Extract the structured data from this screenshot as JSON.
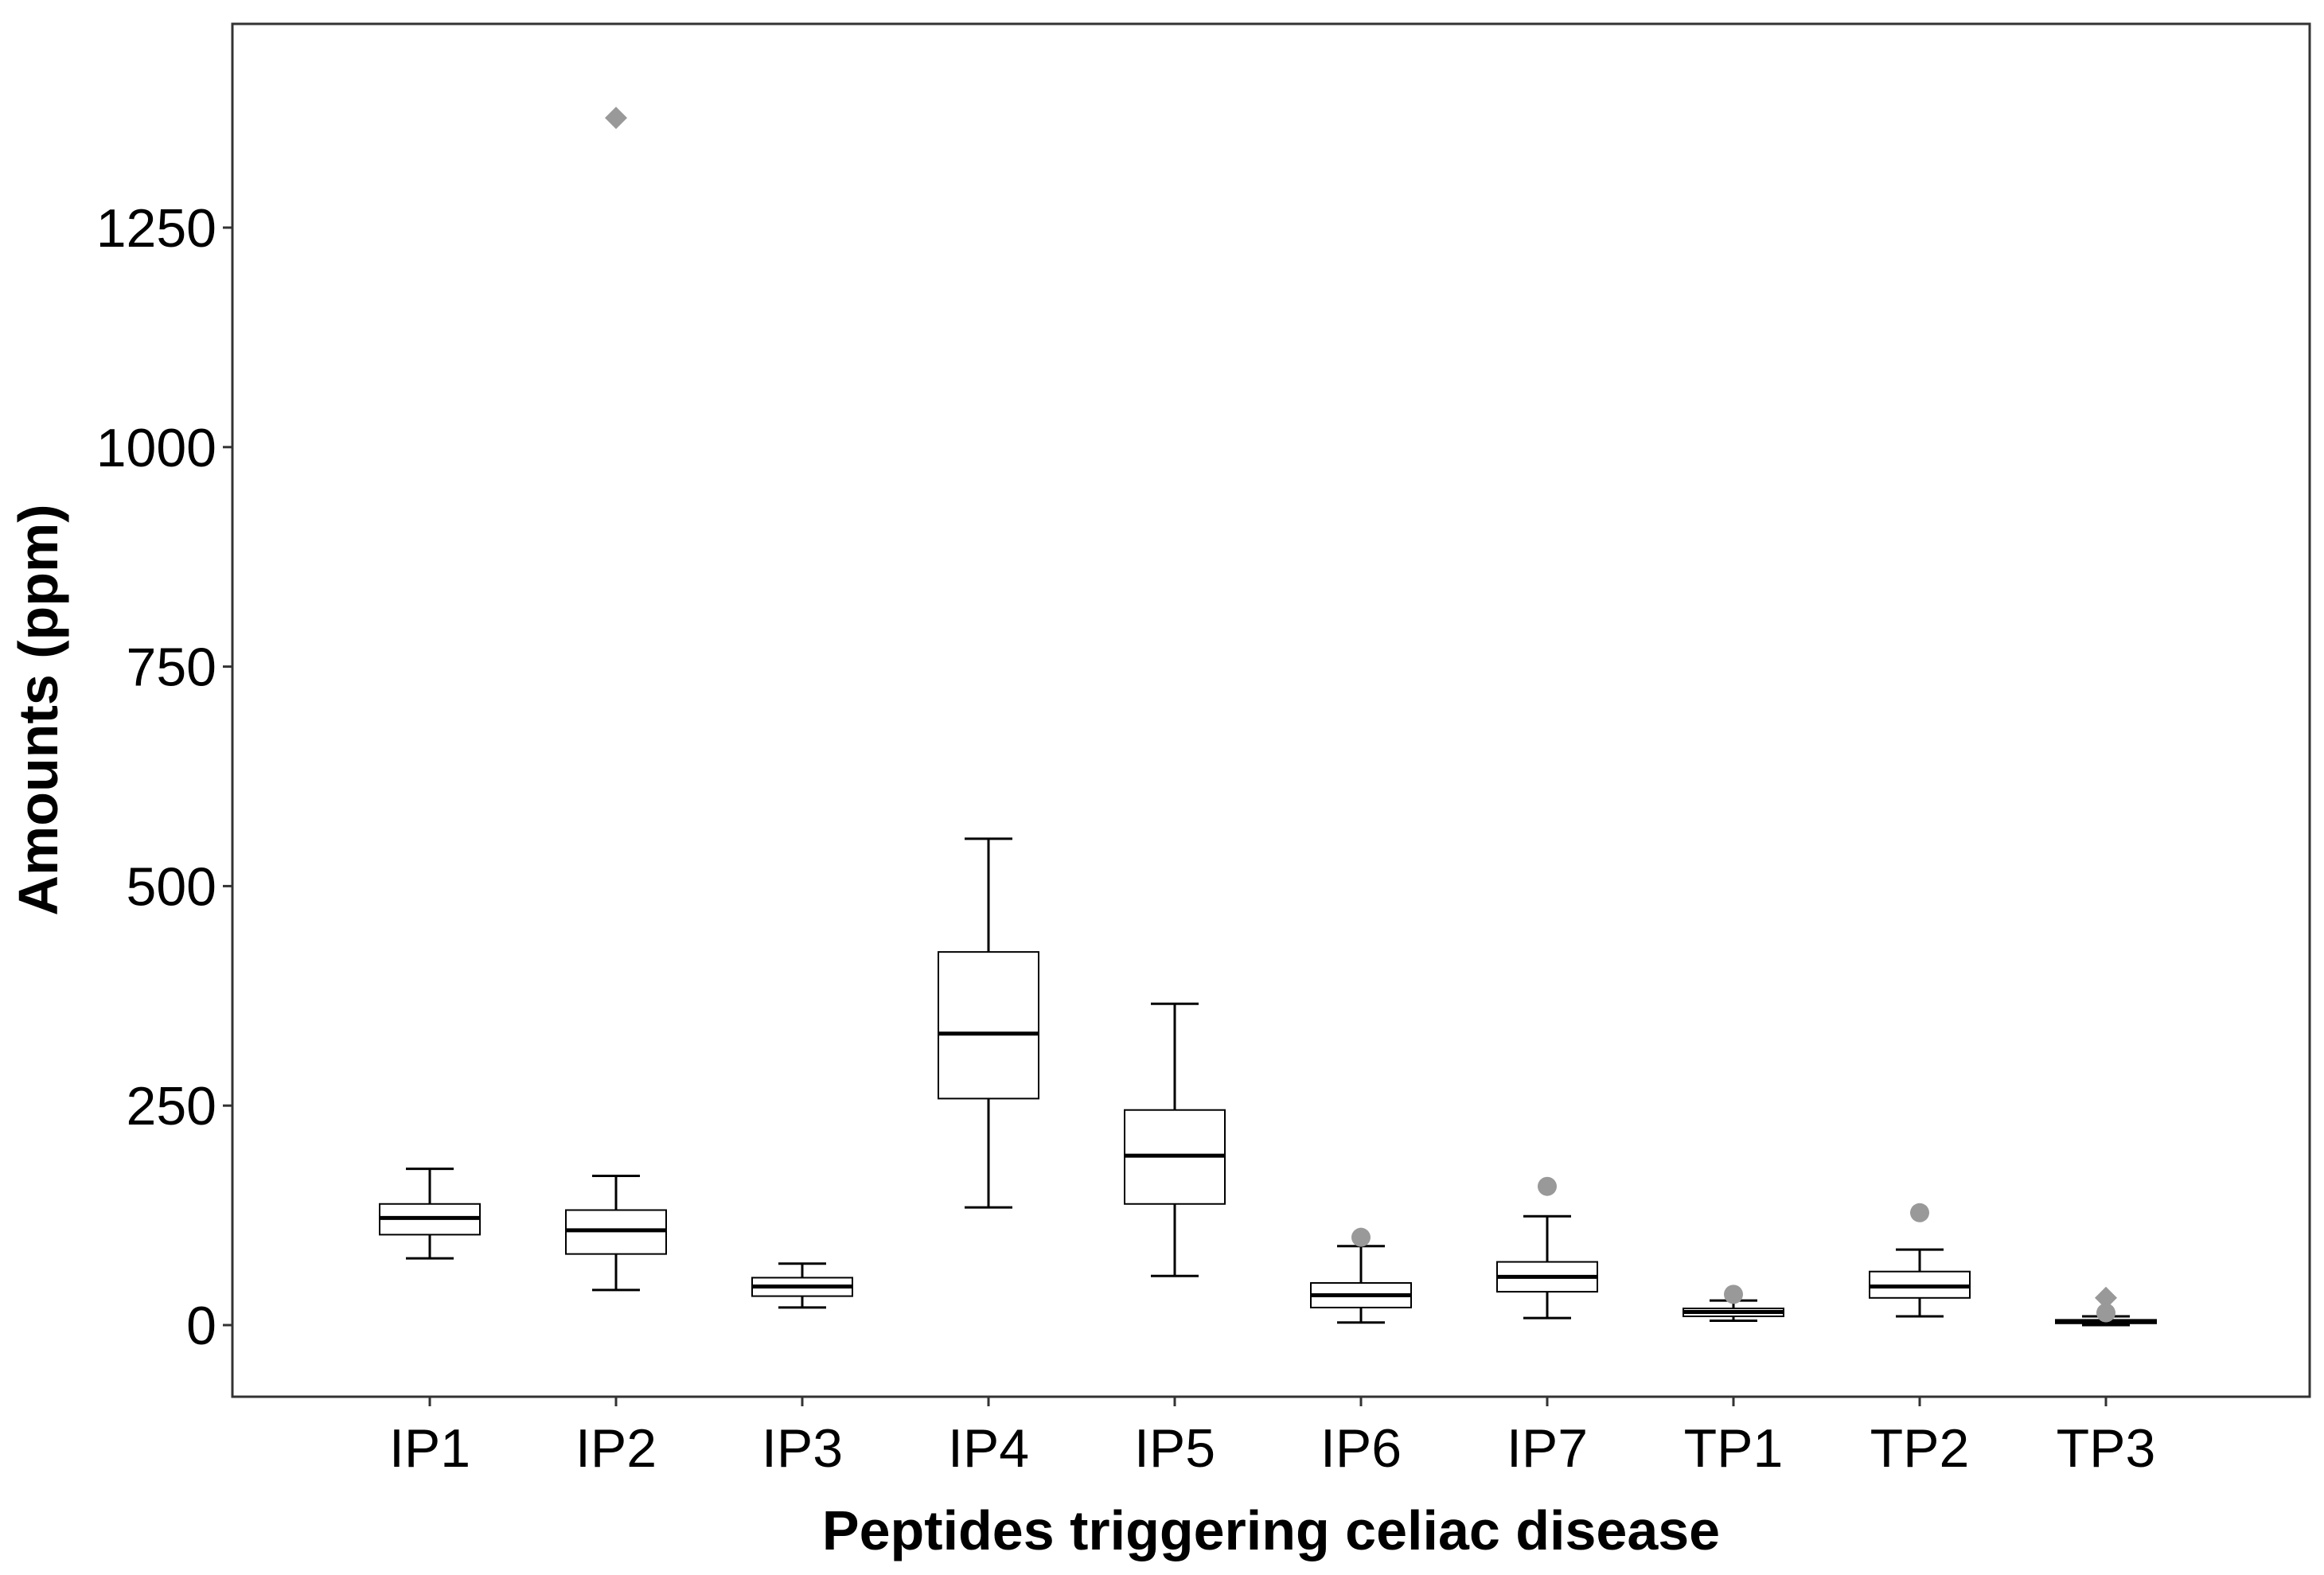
{
  "chart_data": {
    "type": "boxplot",
    "title": "",
    "xlabel": "Peptides triggering celiac disease",
    "ylabel": "Amounts (ppm)",
    "ylim": [
      -80,
      1475
    ],
    "yticks": [
      0,
      250,
      500,
      750,
      1000,
      1250
    ],
    "grid": false,
    "legend": "none",
    "colors": {
      "box_fill": "#ffffff",
      "box_line": "#000000",
      "outlier": "#999999",
      "frame": "#333333"
    },
    "categories": [
      "IP1",
      "IP2",
      "IP3",
      "IP4",
      "IP5",
      "IP6",
      "IP7",
      "TP1",
      "TP2",
      "TP3"
    ],
    "boxes": [
      {
        "label": "IP1",
        "whisker_low": 76,
        "q1": 103,
        "median": 122,
        "q3": 138,
        "whisker_high": 178,
        "outliers": []
      },
      {
        "label": "IP2",
        "whisker_low": 40,
        "q1": 81,
        "median": 108,
        "q3": 131,
        "whisker_high": 170,
        "outliers": [
          {
            "value": 1375,
            "marker": "diamond"
          }
        ]
      },
      {
        "label": "IP3",
        "whisker_low": 20,
        "q1": 33,
        "median": 44,
        "q3": 54,
        "whisker_high": 70,
        "outliers": []
      },
      {
        "label": "IP4",
        "whisker_low": 134,
        "q1": 258,
        "median": 332,
        "q3": 425,
        "whisker_high": 554,
        "outliers": []
      },
      {
        "label": "IP5",
        "whisker_low": 56,
        "q1": 138,
        "median": 193,
        "q3": 245,
        "whisker_high": 366,
        "outliers": []
      },
      {
        "label": "IP6",
        "whisker_low": 3,
        "q1": 20,
        "median": 34,
        "q3": 48,
        "whisker_high": 90,
        "outliers": [
          {
            "value": 100,
            "marker": "circle"
          }
        ]
      },
      {
        "label": "IP7",
        "whisker_low": 8,
        "q1": 38,
        "median": 55,
        "q3": 72,
        "whisker_high": 124,
        "outliers": [
          {
            "value": 158,
            "marker": "circle"
          }
        ]
      },
      {
        "label": "TP1",
        "whisker_low": 5,
        "q1": 10,
        "median": 15,
        "q3": 19,
        "whisker_high": 28,
        "outliers": [
          {
            "value": 35,
            "marker": "circle"
          }
        ]
      },
      {
        "label": "TP2",
        "whisker_low": 10,
        "q1": 31,
        "median": 44,
        "q3": 61,
        "whisker_high": 86,
        "outliers": [
          {
            "value": 128,
            "marker": "circle"
          }
        ]
      },
      {
        "label": "TP3",
        "whisker_low": 0,
        "q1": 2,
        "median": 4,
        "q3": 6,
        "whisker_high": 10,
        "outliers": [
          {
            "value": 31,
            "marker": "diamond"
          },
          {
            "value": 14,
            "marker": "circle"
          }
        ]
      }
    ]
  }
}
